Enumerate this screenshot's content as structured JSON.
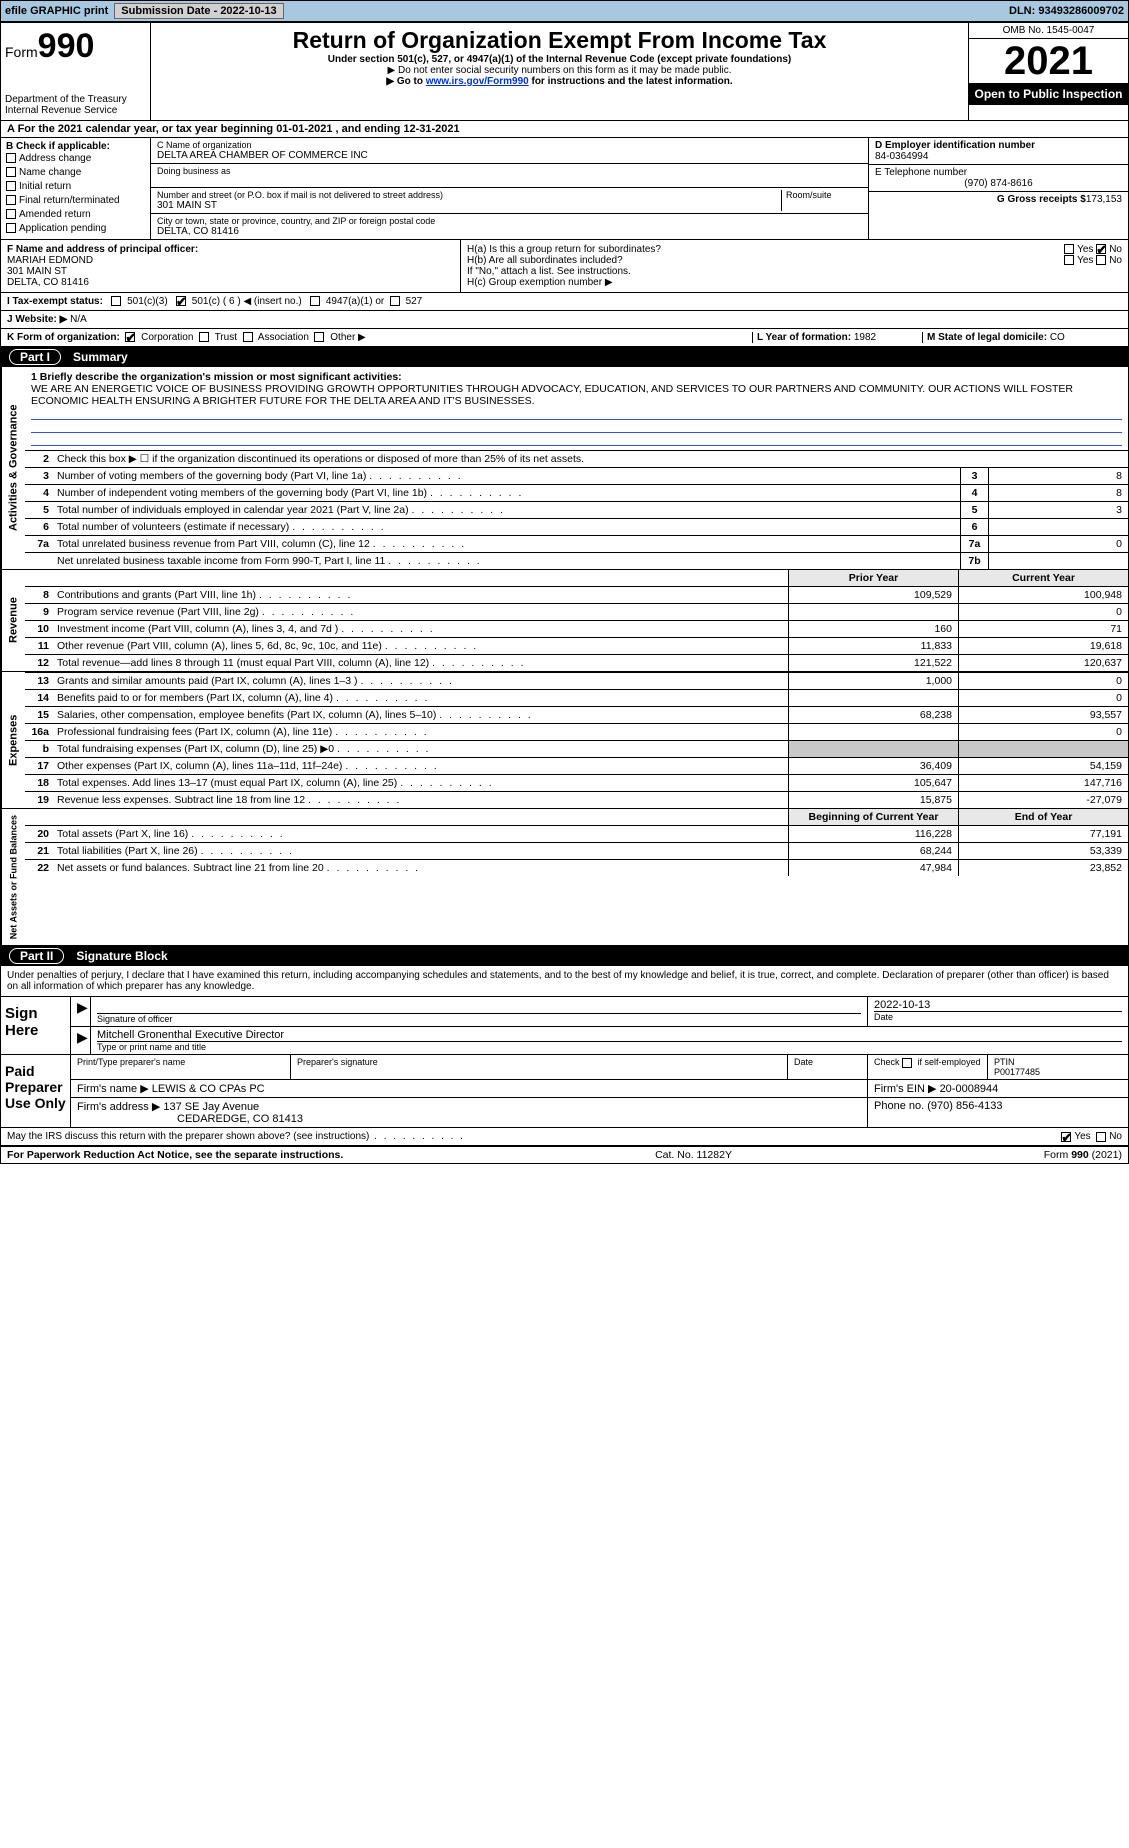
{
  "topbar": {
    "efile_label": "efile GRAPHIC print",
    "sub_date_label": "Submission Date - 2022-10-13",
    "dln_label": "DLN: 93493286009702"
  },
  "form_header": {
    "form_label": "Form",
    "form_number": "990",
    "title": "Return of Organization Exempt From Income Tax",
    "subtitle": "Under section 501(c), 527, or 4947(a)(1) of the Internal Revenue Code (except private foundations)",
    "note1": "▶ Do not enter social security numbers on this form as it may be made public.",
    "note2_pre": "▶ Go to ",
    "note2_link": "www.irs.gov/Form990",
    "note2_post": " for instructions and the latest information.",
    "dept": "Department of the Treasury",
    "irs": "Internal Revenue Service",
    "omb": "OMB No. 1545-0047",
    "year": "2021",
    "open": "Open to Public Inspection"
  },
  "period": {
    "text_a": "A For the 2021 calendar year, or tax year beginning 01-01-2021    , and ending 12-31-2021"
  },
  "section_b": {
    "hdr": "B Check if applicable:",
    "opts": [
      "Address change",
      "Name change",
      "Initial return",
      "Final return/terminated",
      "Amended return",
      "Application pending"
    ]
  },
  "section_c": {
    "name_lead": "C Name of organization",
    "name_val": "DELTA AREA CHAMBER OF COMMERCE INC",
    "dba_lead": "Doing business as",
    "dba_val": "",
    "street_lead": "Number and street (or P.O. box if mail is not delivered to street address)",
    "room_lead": "Room/suite",
    "street_val": "301 MAIN ST",
    "city_lead": "City or town, state or province, country, and ZIP or foreign postal code",
    "city_val": "DELTA, CO  81416"
  },
  "section_d": {
    "ein_lead": "D Employer identification number",
    "ein_val": "84-0364994",
    "phone_lead": "E Telephone number",
    "phone_val": "(970) 874-8616",
    "gross_lead": "G Gross receipts $",
    "gross_val": "173,153"
  },
  "section_f": {
    "lead": "F Name and address of principal officer:",
    "name": "MARIAH EDMOND",
    "street": "301 MAIN ST",
    "city": "DELTA, CO  81416"
  },
  "section_h": {
    "ha": "H(a)  Is this a group return for subordinates?",
    "hb": "H(b)  Are all subordinates included?",
    "hb_note": "If \"No,\" attach a list. See instructions.",
    "hc": "H(c)  Group exemption number ▶",
    "yes": "Yes",
    "no": "No"
  },
  "section_i": {
    "lead": "I  Tax-exempt status:",
    "o1": "501(c)(3)",
    "o2": "501(c) ( 6 ) ◀ (insert no.)",
    "o3": "4947(a)(1) or",
    "o4": "527"
  },
  "section_j": {
    "lead": "J  Website: ▶",
    "val": " N/A"
  },
  "section_k": {
    "lead": "K Form of organization:",
    "opts": [
      "Corporation",
      "Trust",
      "Association",
      "Other ▶"
    ],
    "l_lead": "L Year of formation:",
    "l_val": "1982",
    "m_lead": "M State of legal domicile:",
    "m_val": "CO"
  },
  "part1": {
    "label": "Part I",
    "title": "Summary",
    "vtabs": {
      "gov": "Activities & Governance",
      "rev": "Revenue",
      "exp": "Expenses",
      "net": "Net Assets or Fund Balances"
    },
    "mission_lead": "1  Briefly describe the organization's mission or most significant activities:",
    "mission_text": "WE ARE AN ENERGETIC VOICE OF BUSINESS PROVIDING GROWTH OPPORTUNITIES THROUGH ADVOCACY, EDUCATION, AND SERVICES TO OUR PARTNERS AND COMMUNITY. OUR ACTIONS WILL FOSTER ECONOMIC HEALTH ENSURING A BRIGHTER FUTURE FOR THE DELTA AREA AND IT'S BUSINESSES.",
    "line2": "Check this box ▶ ☐  if the organization discontinued its operations or disposed of more than 25% of its net assets.",
    "rows_gov": [
      {
        "n": "3",
        "t": "Number of voting members of the governing body (Part VI, line 1a)",
        "box": "3",
        "v": "8"
      },
      {
        "n": "4",
        "t": "Number of independent voting members of the governing body (Part VI, line 1b)",
        "box": "4",
        "v": "8"
      },
      {
        "n": "5",
        "t": "Total number of individuals employed in calendar year 2021 (Part V, line 2a)",
        "box": "5",
        "v": "3"
      },
      {
        "n": "6",
        "t": "Total number of volunteers (estimate if necessary)",
        "box": "6",
        "v": ""
      },
      {
        "n": "7a",
        "t": "Total unrelated business revenue from Part VIII, column (C), line 12",
        "box": "7a",
        "v": "0"
      },
      {
        "n": "",
        "t": "Net unrelated business taxable income from Form 990-T, Part I, line 11",
        "box": "7b",
        "v": ""
      }
    ],
    "yearhdr": {
      "c1": "Prior Year",
      "c2": "Current Year"
    },
    "rows_rev": [
      {
        "n": "8",
        "t": "Contributions and grants (Part VIII, line 1h)",
        "p": "109,529",
        "c": "100,948"
      },
      {
        "n": "9",
        "t": "Program service revenue (Part VIII, line 2g)",
        "p": "",
        "c": "0"
      },
      {
        "n": "10",
        "t": "Investment income (Part VIII, column (A), lines 3, 4, and 7d )",
        "p": "160",
        "c": "71"
      },
      {
        "n": "11",
        "t": "Other revenue (Part VIII, column (A), lines 5, 6d, 8c, 9c, 10c, and 11e)",
        "p": "11,833",
        "c": "19,618"
      },
      {
        "n": "12",
        "t": "Total revenue—add lines 8 through 11 (must equal Part VIII, column (A), line 12)",
        "p": "121,522",
        "c": "120,637"
      }
    ],
    "rows_exp": [
      {
        "n": "13",
        "t": "Grants and similar amounts paid (Part IX, column (A), lines 1–3 )",
        "p": "1,000",
        "c": "0"
      },
      {
        "n": "14",
        "t": "Benefits paid to or for members (Part IX, column (A), line 4)",
        "p": "",
        "c": "0"
      },
      {
        "n": "15",
        "t": "Salaries, other compensation, employee benefits (Part IX, column (A), lines 5–10)",
        "p": "68,238",
        "c": "93,557"
      },
      {
        "n": "16a",
        "t": "Professional fundraising fees (Part IX, column (A), line 11e)",
        "p": "",
        "c": "0"
      },
      {
        "n": "b",
        "t": "Total fundraising expenses (Part IX, column (D), line 25) ▶0",
        "p": "GREY",
        "c": "GREY"
      },
      {
        "n": "17",
        "t": "Other expenses (Part IX, column (A), lines 11a–11d, 11f–24e)",
        "p": "36,409",
        "c": "54,159"
      },
      {
        "n": "18",
        "t": "Total expenses. Add lines 13–17 (must equal Part IX, column (A), line 25)",
        "p": "105,647",
        "c": "147,716"
      },
      {
        "n": "19",
        "t": "Revenue less expenses. Subtract line 18 from line 12",
        "p": "15,875",
        "c": "-27,079"
      }
    ],
    "nethdr": {
      "c1": "Beginning of Current Year",
      "c2": "End of Year"
    },
    "rows_net": [
      {
        "n": "20",
        "t": "Total assets (Part X, line 16)",
        "p": "116,228",
        "c": "77,191"
      },
      {
        "n": "21",
        "t": "Total liabilities (Part X, line 26)",
        "p": "68,244",
        "c": "53,339"
      },
      {
        "n": "22",
        "t": "Net assets or fund balances. Subtract line 21 from line 20",
        "p": "47,984",
        "c": "23,852"
      }
    ]
  },
  "part2": {
    "label": "Part II",
    "title": "Signature Block",
    "declaration": "Under penalties of perjury, I declare that I have examined this return, including accompanying schedules and statements, and to the best of my knowledge and belief, it is true, correct, and complete. Declaration of preparer (other than officer) is based on all information of which preparer has any knowledge."
  },
  "sign": {
    "left": "Sign Here",
    "sig_label": "Signature of officer",
    "date_label": "Date",
    "date_val": "2022-10-13",
    "name_val": "Mitchell Gronenthal  Executive Director",
    "name_label": "Type or print name and title"
  },
  "paid": {
    "left": "Paid Preparer Use Only",
    "h1": "Print/Type preparer's name",
    "h2": "Preparer's signature",
    "h3": "Date",
    "h4_pre": "Check",
    "h4_post": "if self-employed",
    "h5": "PTIN",
    "ptin_val": "P00177485",
    "firm_name_lead": "Firm's name     ▶",
    "firm_name_val": "LEWIS & CO CPAs PC",
    "firm_ein_lead": "Firm's EIN ▶",
    "firm_ein_val": "20-0008944",
    "firm_addr_lead": "Firm's address ▶",
    "firm_addr_val1": "137 SE Jay Avenue",
    "firm_addr_val2": "CEDAREDGE, CO  81413",
    "phone_lead": "Phone no.",
    "phone_val": "(970) 856-4133"
  },
  "discuss": {
    "q": "May the IRS discuss this return with the preparer shown above? (see instructions)",
    "yes": "Yes",
    "no": "No"
  },
  "footer": {
    "left": "For Paperwork Reduction Act Notice, see the separate instructions.",
    "mid": "Cat. No. 11282Y",
    "right_pre": "Form ",
    "right_bold": "990",
    "right_post": " (2021)"
  }
}
